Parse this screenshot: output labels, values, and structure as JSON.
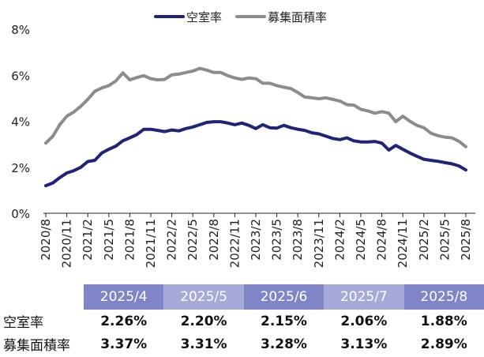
{
  "chart_data": {
    "type": "line",
    "title": "",
    "xlabel": "",
    "ylabel": "",
    "ylim": [
      0,
      8
    ],
    "yticks": [
      "0%",
      "2%",
      "4%",
      "6%",
      "8%"
    ],
    "grid": false,
    "legend_position": "top",
    "x": [
      "2020/8",
      "2020/9",
      "2020/10",
      "2020/11",
      "2020/12",
      "2021/1",
      "2021/2",
      "2021/3",
      "2021/4",
      "2021/5",
      "2021/6",
      "2021/7",
      "2021/8",
      "2021/9",
      "2021/10",
      "2021/11",
      "2021/12",
      "2022/1",
      "2022/2",
      "2022/3",
      "2022/4",
      "2022/5",
      "2022/6",
      "2022/7",
      "2022/8",
      "2022/9",
      "2022/10",
      "2022/11",
      "2022/12",
      "2023/1",
      "2023/2",
      "2023/3",
      "2023/4",
      "2023/5",
      "2023/6",
      "2023/7",
      "2023/8",
      "2023/9",
      "2023/10",
      "2023/11",
      "2023/12",
      "2024/1",
      "2024/2",
      "2024/3",
      "2024/4",
      "2024/5",
      "2024/6",
      "2024/7",
      "2024/8",
      "2024/9",
      "2024/10",
      "2024/11",
      "2024/12",
      "2025/1",
      "2025/2",
      "2025/3",
      "2025/4",
      "2025/5",
      "2025/6",
      "2025/7",
      "2025/8"
    ],
    "x_tick_labels": [
      "2020/8",
      "2020/11",
      "2021/2",
      "2021/5",
      "2021/8",
      "2021/11",
      "2022/2",
      "2022/5",
      "2022/8",
      "2022/11",
      "2023/2",
      "2023/5",
      "2023/8",
      "2023/11",
      "2024/2",
      "2024/5",
      "2024/8",
      "2024/11",
      "2025/2",
      "2025/5",
      "2025/8"
    ],
    "series": [
      {
        "name": "空室率",
        "color": "#1f237a",
        "values": [
          1.2,
          1.32,
          1.55,
          1.75,
          1.85,
          2.0,
          2.25,
          2.3,
          2.62,
          2.78,
          2.92,
          3.15,
          3.28,
          3.42,
          3.65,
          3.65,
          3.6,
          3.55,
          3.62,
          3.58,
          3.68,
          3.75,
          3.85,
          3.95,
          3.98,
          3.98,
          3.92,
          3.85,
          3.92,
          3.82,
          3.68,
          3.85,
          3.72,
          3.7,
          3.82,
          3.72,
          3.65,
          3.6,
          3.5,
          3.45,
          3.35,
          3.25,
          3.2,
          3.28,
          3.15,
          3.1,
          3.1,
          3.12,
          3.05,
          2.75,
          2.95,
          2.78,
          2.62,
          2.48,
          2.35,
          2.3,
          2.26,
          2.2,
          2.15,
          2.06,
          1.88
        ]
      },
      {
        "name": "募集面積率",
        "color": "#8c8c8c",
        "values": [
          3.05,
          3.35,
          3.85,
          4.22,
          4.4,
          4.65,
          4.95,
          5.3,
          5.45,
          5.55,
          5.75,
          6.1,
          5.8,
          5.9,
          5.98,
          5.85,
          5.8,
          5.82,
          6.02,
          6.05,
          6.12,
          6.18,
          6.3,
          6.22,
          6.12,
          6.12,
          5.98,
          5.88,
          5.82,
          5.88,
          5.85,
          5.65,
          5.65,
          5.55,
          5.48,
          5.42,
          5.25,
          5.05,
          5.02,
          4.98,
          5.02,
          4.95,
          4.88,
          4.72,
          4.7,
          4.52,
          4.45,
          4.35,
          4.42,
          4.35,
          3.98,
          4.22,
          4.0,
          3.82,
          3.72,
          3.48,
          3.37,
          3.31,
          3.28,
          3.13,
          2.89
        ]
      }
    ]
  },
  "legend": [
    {
      "label": "空室率",
      "color": "#1f237a"
    },
    {
      "label": "募集面積率",
      "color": "#8c8c8c"
    }
  ],
  "table": {
    "months": [
      "2025/4",
      "2025/5",
      "2025/6",
      "2025/7",
      "2025/8"
    ],
    "rows": [
      {
        "label": "空室率",
        "values": [
          "2.26%",
          "2.20%",
          "2.15%",
          "2.06%",
          "1.88%"
        ]
      },
      {
        "label": "募集面積率",
        "values": [
          "3.37%",
          "3.31%",
          "3.28%",
          "3.13%",
          "2.89%"
        ]
      }
    ]
  }
}
